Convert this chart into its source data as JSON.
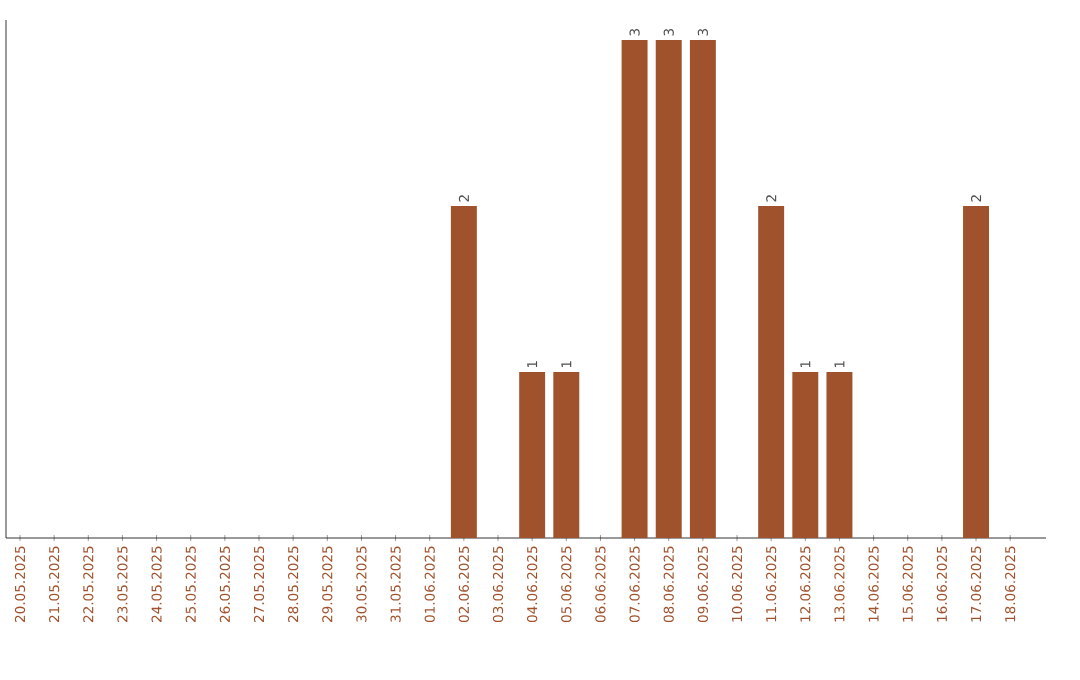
{
  "chart_data": {
    "type": "bar",
    "color": "#a0522d",
    "categories": [
      "20.05.2025",
      "21.05.2025",
      "22.05.2025",
      "23.05.2025",
      "24.05.2025",
      "25.05.2025",
      "26.05.2025",
      "27.05.2025",
      "28.05.2025",
      "29.05.2025",
      "30.05.2025",
      "31.05.2025",
      "01.06.2025",
      "02.06.2025",
      "03.06.2025",
      "04.06.2025",
      "05.06.2025",
      "06.06.2025",
      "07.06.2025",
      "08.06.2025",
      "09.06.2025",
      "10.06.2025",
      "11.06.2025",
      "12.06.2025",
      "13.06.2025",
      "14.06.2025",
      "15.06.2025",
      "16.06.2025",
      "17.06.2025",
      "18.06.2025"
    ],
    "values": [
      null,
      null,
      null,
      null,
      null,
      null,
      null,
      null,
      null,
      null,
      null,
      null,
      null,
      2,
      null,
      1,
      1,
      null,
      3,
      3,
      3,
      null,
      2,
      1,
      1,
      null,
      null,
      null,
      2,
      null
    ],
    "data_labels": true,
    "tick_labels": "x"
  }
}
